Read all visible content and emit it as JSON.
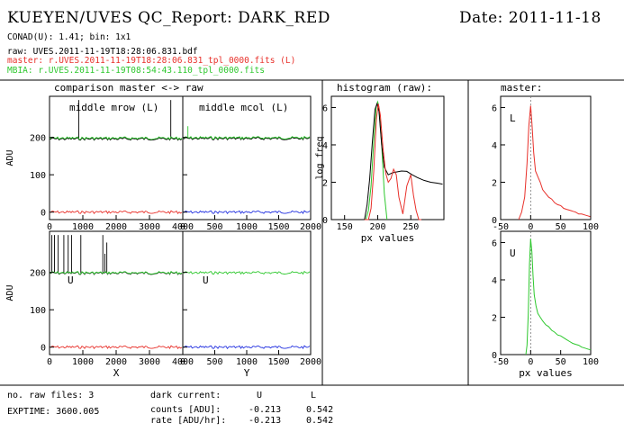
{
  "header": {
    "title": "KUEYEN/UVES QC_Report: DARK_RED",
    "date": "Date: 2011-11-18",
    "conad": "CONAD(U): 1.41; bin: 1x1",
    "raw_line": "raw: UVES.2011-11-19T18:28:06.831.bdf",
    "master_line": "master: r.UVES.2011-11-19T18:28:06.831_tpl_0000.fits (L)",
    "mbia_line": "MBIA: r.UVES.2011-11-19T08:54:43.110_tpl_0000.fits"
  },
  "colors": {
    "master": "#e8302a",
    "mbia": "#2ec82e",
    "raw": "#000000",
    "mcol": "#2230e0",
    "guide": "#777777"
  },
  "footer": {
    "nraw": "no. raw files: 3",
    "exptime": "EXPTIME: 3600.005",
    "dark_current": "dark current:",
    "col_u": "U",
    "col_l": "L",
    "counts_label": "counts [ADU]:",
    "counts_u": "-0.213",
    "counts_l": "0.542",
    "rate_label": "rate [ADU/hr]:",
    "rate_u": "-0.213",
    "rate_l": "0.542"
  },
  "chart_data": [
    {
      "id": "comparison",
      "type": "line",
      "title": "comparison master <-> raw",
      "panels": [
        {
          "key": "row_L",
          "label": "middle mrow (L)",
          "ylabel": "ADU",
          "xlabel": "",
          "xlim": [
            0,
            4000
          ],
          "ylim": [
            -20,
            310
          ],
          "series": [
            {
              "role": "raw",
              "values": [
                [
                  0,
                  196
                ],
                [
                  4000,
                  196
                ]
              ],
              "spikes": [
                [
                  880,
                  300
                ],
                [
                  3640,
                  300
                ]
              ]
            },
            {
              "role": "mbia",
              "values": [
                [
                  0,
                  198
                ],
                [
                  4000,
                  198
                ]
              ]
            },
            {
              "role": "master",
              "values": [
                [
                  0,
                  0
                ],
                [
                  4000,
                  0
                ]
              ]
            }
          ]
        },
        {
          "key": "col_L",
          "label": "middle mcol (L)",
          "ylabel": "",
          "xlabel": "",
          "xlim": [
            0,
            2000
          ],
          "ylim": [
            -20,
            310
          ],
          "series": [
            {
              "role": "raw",
              "values": [
                [
                  0,
                  197
                ],
                [
                  2000,
                  197
                ]
              ]
            },
            {
              "role": "mbia",
              "values": [
                [
                  0,
                  199
                ],
                [
                  2000,
                  199
                ]
              ],
              "spikes": [
                [
                  80,
                  230
                ]
              ]
            },
            {
              "role": "mcol",
              "values": [
                [
                  0,
                  0
                ],
                [
                  2000,
                  0
                ]
              ]
            }
          ]
        },
        {
          "key": "row_U",
          "label": "U",
          "ylabel": "ADU",
          "xlabel": "X",
          "xlim": [
            0,
            4000
          ],
          "ylim": [
            -20,
            310
          ],
          "series": [
            {
              "role": "raw",
              "values": [
                [
                  0,
                  198
                ],
                [
                  4000,
                  198
                ]
              ],
              "spikes": [
                [
                  70,
                  300
                ],
                [
                  150,
                  300
                ],
                [
                  260,
                  300
                ],
                [
                  430,
                  300
                ],
                [
                  560,
                  300
                ],
                [
                  660,
                  300
                ],
                [
                  940,
                  300
                ],
                [
                  1600,
                  300
                ],
                [
                  1660,
                  250
                ],
                [
                  1720,
                  280
                ]
              ]
            },
            {
              "role": "mbia",
              "values": [
                [
                  0,
                  199
                ],
                [
                  4000,
                  199
                ]
              ]
            },
            {
              "role": "master",
              "values": [
                [
                  0,
                  0
                ],
                [
                  4000,
                  0
                ]
              ]
            }
          ]
        },
        {
          "key": "col_U",
          "label": "U",
          "ylabel": "",
          "xlabel": "Y",
          "xlim": [
            0,
            2000
          ],
          "ylim": [
            -20,
            310
          ],
          "series": [
            {
              "role": "mbia",
              "values": [
                [
                  0,
                  199
                ],
                [
                  2000,
                  199
                ]
              ]
            },
            {
              "role": "mcol",
              "values": [
                [
                  0,
                  0
                ],
                [
                  2000,
                  0
                ]
              ]
            }
          ]
        }
      ],
      "ticks": {
        "row_x": [
          0,
          1000,
          2000,
          3000,
          4000
        ],
        "col_x": [
          0,
          500,
          1000,
          1500,
          2000
        ],
        "y": [
          0,
          100,
          200
        ]
      }
    },
    {
      "id": "histogram",
      "type": "line",
      "title": "histogram (raw):",
      "xlabel": "px values",
      "ylabel": "log freq",
      "xlim": [
        130,
        300
      ],
      "ylim": [
        0,
        6.6
      ],
      "xticks": [
        150,
        200,
        250
      ],
      "yticks": [
        0,
        2,
        4,
        6
      ],
      "series": [
        {
          "role": "mbia",
          "x": [
            182,
            186,
            190,
            194,
            198,
            200,
            202,
            206,
            210,
            214
          ],
          "y": [
            0,
            0.5,
            1.8,
            4.2,
            6.1,
            6.3,
            6.0,
            4.0,
            1.4,
            0
          ]
        },
        {
          "role": "raw",
          "x": [
            180,
            184,
            188,
            192,
            196,
            199,
            202,
            206,
            210,
            216,
            222,
            228,
            236,
            244,
            252,
            260,
            270,
            280,
            290,
            298
          ],
          "y": [
            0,
            0.8,
            2.2,
            4.2,
            5.9,
            6.2,
            5.8,
            4.0,
            2.8,
            2.4,
            2.5,
            2.55,
            2.6,
            2.58,
            2.4,
            2.25,
            2.1,
            2.0,
            1.95,
            1.9
          ]
        },
        {
          "role": "master",
          "x": [
            180,
            186,
            190,
            194,
            198,
            201,
            204,
            208,
            212,
            216,
            220,
            224,
            228,
            232,
            238,
            244,
            250,
            254,
            258,
            262,
            266
          ],
          "y": [
            0,
            0,
            0.6,
            2.6,
            5.4,
            6.2,
            5.6,
            3.8,
            2.5,
            2.0,
            2.2,
            2.7,
            2.4,
            1.2,
            0.3,
            1.8,
            2.4,
            1.3,
            0.5,
            0,
            0
          ]
        }
      ]
    },
    {
      "id": "master_hist",
      "type": "line",
      "title": "master:",
      "xlabel": "px values",
      "panels": [
        {
          "key": "L",
          "label": "L",
          "role": "master",
          "xlim": [
            -50,
            100
          ],
          "ylim": [
            0,
            6.6
          ],
          "x": [
            -20,
            -15,
            -10,
            -6,
            -3,
            0,
            2,
            5,
            8,
            12,
            16,
            20,
            25,
            30,
            35,
            40,
            45,
            50,
            55,
            60,
            65,
            70,
            75,
            80,
            85,
            90,
            95,
            100
          ],
          "y": [
            0,
            0.4,
            1.2,
            3.0,
            5.0,
            6.1,
            5.2,
            3.6,
            2.6,
            2.3,
            2.0,
            1.6,
            1.4,
            1.2,
            1.1,
            0.9,
            0.8,
            0.75,
            0.6,
            0.55,
            0.5,
            0.45,
            0.4,
            0.3,
            0.3,
            0.25,
            0.2,
            0.15
          ]
        },
        {
          "key": "U",
          "label": "U",
          "role": "mbia",
          "xlim": [
            -50,
            100
          ],
          "ylim": [
            0,
            6.6
          ],
          "x": [
            -8,
            -6,
            -4,
            -2,
            0,
            2,
            4,
            6,
            9,
            12,
            16,
            20,
            25,
            30,
            35,
            40,
            45,
            50,
            55,
            60,
            65,
            70,
            75,
            80,
            85,
            90,
            95,
            100
          ],
          "y": [
            0,
            0.5,
            2.2,
            4.8,
            6.2,
            5.5,
            4.2,
            3.2,
            2.6,
            2.2,
            2.0,
            1.8,
            1.6,
            1.5,
            1.3,
            1.2,
            1.05,
            1.0,
            0.9,
            0.8,
            0.7,
            0.6,
            0.55,
            0.5,
            0.4,
            0.35,
            0.3,
            0.25
          ]
        }
      ],
      "xticks": [
        -50,
        0,
        50,
        100
      ],
      "yticks": [
        0,
        2,
        4,
        6
      ]
    }
  ]
}
